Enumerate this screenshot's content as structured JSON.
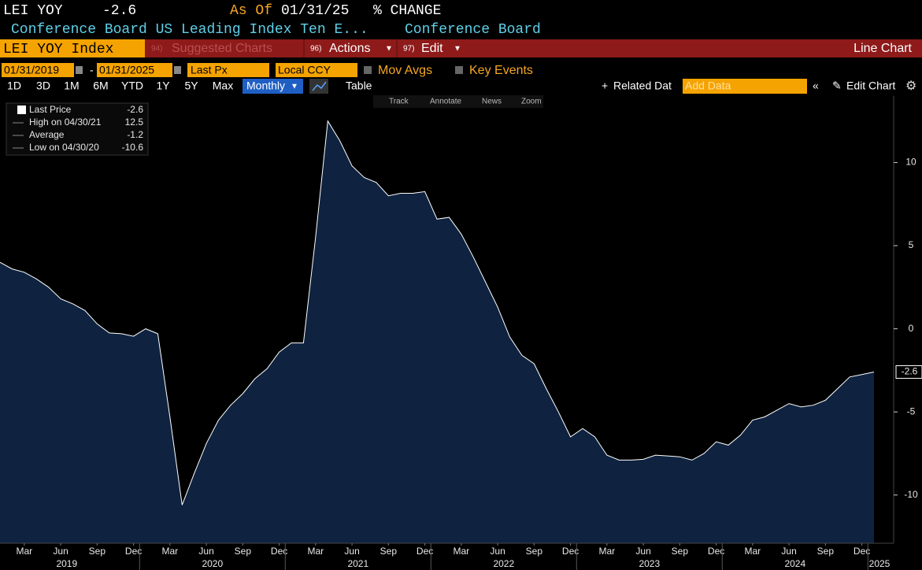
{
  "header": {
    "ticker": "LEI YOY",
    "price": "-2.6",
    "as_of_label": "As Of",
    "as_of": "01/31/25",
    "units": "% CHANGE",
    "name": "Conference Board US Leading Index Ten E...",
    "source": "Conference Board"
  },
  "menu": {
    "security": "LEI YOY Index",
    "suggested": {
      "num": "94)",
      "label": "Suggested Charts"
    },
    "actions": {
      "num": "96)",
      "label": "Actions"
    },
    "edit": {
      "num": "97)",
      "label": "Edit"
    },
    "view": "Line Chart"
  },
  "controls": {
    "start": "01/31/2019",
    "end": "01/31/2025",
    "field": "Last Px",
    "currency": "Local CCY",
    "mov_avgs": "Mov Avgs",
    "key_events": "Key Events"
  },
  "toolbar": {
    "periods": [
      "1D",
      "3D",
      "1M",
      "6M",
      "YTD",
      "1Y",
      "5Y",
      "Max"
    ],
    "frequency": "Monthly",
    "table": "Table",
    "related": "Related Dat",
    "add_data": "Add Data",
    "edit_chart": "Edit Chart"
  },
  "tools": [
    "Track",
    "Annotate",
    "News",
    "Zoom"
  ],
  "legend": [
    {
      "label": "Last Price",
      "value": -2.6
    },
    {
      "label": "High on 04/30/21",
      "value": 12.5
    },
    {
      "label": "Average",
      "value": -1.2
    },
    {
      "label": "Low on 04/30/20",
      "value": -10.6
    }
  ],
  "chart_data": {
    "type": "area",
    "color": "#ffffff",
    "fill": "#0f2340",
    "categories": [
      null,
      null,
      "Mar",
      null,
      null,
      "Jun",
      null,
      null,
      "Sep",
      null,
      null,
      "Dec",
      null,
      null,
      "Mar",
      null,
      null,
      "Jun",
      null,
      null,
      "Sep",
      null,
      null,
      "Dec",
      null,
      null,
      "Mar",
      null,
      null,
      "Jun",
      null,
      null,
      "Sep",
      null,
      null,
      "Dec",
      null,
      null,
      "Mar",
      null,
      null,
      "Jun",
      null,
      null,
      "Sep",
      null,
      null,
      "Dec",
      null,
      null,
      "Mar",
      null,
      null,
      "Jun",
      null,
      null,
      "Sep",
      null,
      null,
      "Dec",
      null,
      null,
      "Mar",
      null,
      null,
      "Jun",
      null,
      null,
      "Sep",
      null,
      null,
      "Dec",
      null
    ],
    "years": [
      "2019",
      "2020",
      "2021",
      "2022",
      "2023",
      "2024",
      "2025"
    ],
    "values": [
      4.0,
      3.6,
      3.4,
      3.0,
      2.5,
      1.8,
      1.5,
      1.1,
      0.3,
      -0.25,
      -0.3,
      -0.45,
      0.0,
      -0.3,
      -5.3,
      -10.6,
      -8.7,
      -6.9,
      -5.5,
      -4.6,
      -3.9,
      -3.0,
      -2.4,
      -1.4,
      -0.85,
      -0.85,
      5.5,
      12.5,
      11.3,
      9.8,
      9.1,
      8.8,
      8.0,
      8.15,
      8.15,
      8.25,
      6.6,
      6.7,
      5.7,
      4.3,
      2.8,
      1.3,
      -0.5,
      -1.6,
      -2.1,
      -3.6,
      -5.0,
      -6.5,
      -6.0,
      -6.5,
      -7.6,
      -7.9,
      -7.9,
      -7.85,
      -7.6,
      -7.65,
      -7.7,
      -7.9,
      -7.5,
      -6.8,
      -7.0,
      -6.4,
      -5.5,
      -5.3,
      -4.9,
      -4.5,
      -4.7,
      -4.6,
      -4.3,
      -3.6,
      -2.9,
      -2.75,
      -2.6
    ],
    "ylim": [
      -12.9,
      14.0
    ],
    "yticks": [
      -10,
      -5,
      0,
      5,
      10
    ]
  }
}
